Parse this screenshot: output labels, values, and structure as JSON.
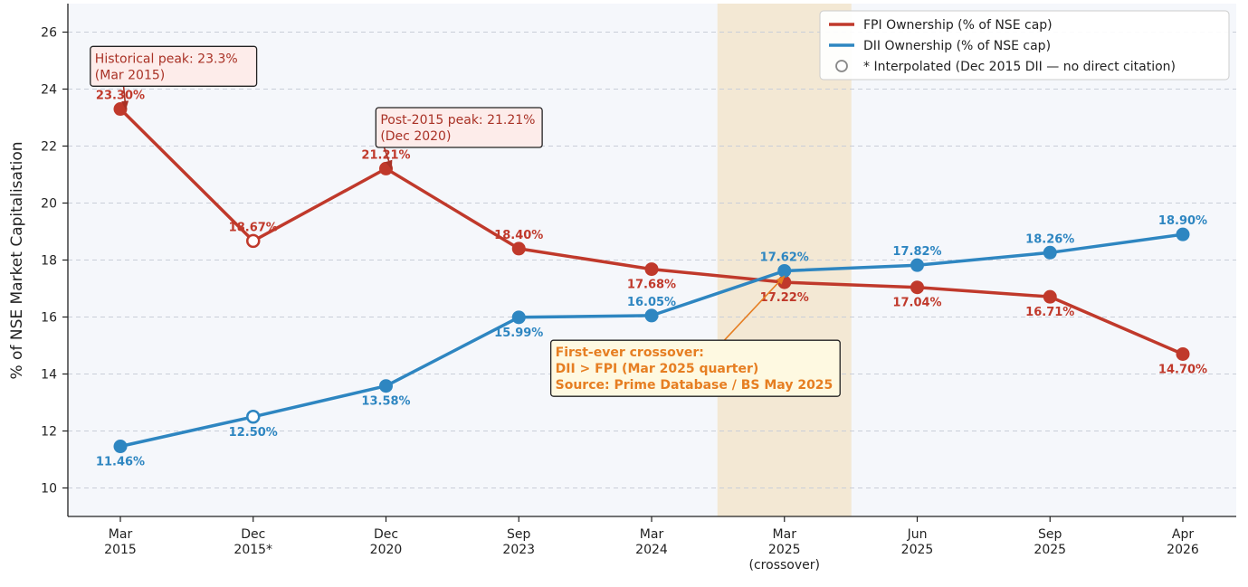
{
  "chart_data": {
    "type": "line",
    "title": "",
    "xlabel": "",
    "ylabel": "% of NSE Market Capitalisation",
    "ylim": [
      9,
      27
    ],
    "yticks": [
      10,
      12,
      14,
      16,
      18,
      20,
      22,
      24,
      26
    ],
    "grid": "horizontal dashed",
    "legend_position": "top-right",
    "categories": [
      [
        "Mar",
        "2015"
      ],
      [
        "Dec",
        "2015*"
      ],
      [
        "Dec",
        "2020"
      ],
      [
        "Sep",
        "2023"
      ],
      [
        "Mar",
        "2024"
      ],
      [
        "Mar",
        "2025",
        "(crossover)"
      ],
      [
        "Jun",
        "2025"
      ],
      [
        "Sep",
        "2025"
      ],
      [
        "Apr",
        "2026"
      ]
    ],
    "highlight_band": {
      "category_index": 5,
      "color": "#f2e3cb"
    },
    "series": [
      {
        "name": "FPI Ownership (% of NSE cap)",
        "color": "#c0392b",
        "values": [
          23.3,
          18.67,
          21.21,
          18.4,
          17.68,
          17.22,
          17.04,
          16.71,
          14.7
        ],
        "labels": [
          "23.30%",
          "18.67%",
          "21.21%",
          "18.40%",
          "17.68%",
          "17.22%",
          "17.04%",
          "16.71%",
          "14.70%"
        ],
        "label_side": [
          "above",
          "above",
          "above",
          "above",
          "below",
          "below",
          "below",
          "below",
          "below"
        ],
        "interpolated": [
          false,
          true,
          false,
          false,
          false,
          false,
          false,
          false,
          false
        ]
      },
      {
        "name": "DII Ownership (% of NSE cap)",
        "color": "#2e86c1",
        "values": [
          11.46,
          12.5,
          13.58,
          15.99,
          16.05,
          17.62,
          17.82,
          18.26,
          18.9
        ],
        "labels": [
          "11.46%",
          "12.50%",
          "13.58%",
          "15.99%",
          "16.05%",
          "17.62%",
          "17.82%",
          "18.26%",
          "18.90%"
        ],
        "label_side": [
          "below",
          "below",
          "below",
          "below",
          "above",
          "above",
          "above",
          "above",
          "above"
        ],
        "interpolated": [
          false,
          true,
          false,
          false,
          false,
          false,
          false,
          false,
          false
        ]
      }
    ],
    "legend": [
      {
        "label": "FPI Ownership (% of NSE cap)",
        "kind": "line",
        "color": "#c0392b"
      },
      {
        "label": "DII Ownership (% of NSE cap)",
        "kind": "line",
        "color": "#2e86c1"
      },
      {
        "label": "* Interpolated (Dec 2015 DII — no direct citation)",
        "kind": "hollow-marker",
        "color": "#888888"
      }
    ],
    "annotations": [
      {
        "lines": [
          "Historical peak: 23.3%",
          "(Mar 2015)"
        ],
        "color": "#a93226",
        "bg": "#fdecea",
        "bold": false,
        "points_to": {
          "category_index": 0,
          "value": 23.3
        },
        "anchor": {
          "category_index": 0.4,
          "value": 24.8
        }
      },
      {
        "lines": [
          "Post-2015 peak: 21.21%",
          "(Dec 2020)"
        ],
        "color": "#a93226",
        "bg": "#fdecea",
        "bold": false,
        "points_to": {
          "category_index": 2,
          "value": 21.21
        },
        "anchor": {
          "category_index": 2.55,
          "value": 22.65
        }
      },
      {
        "lines": [
          "First-ever crossover:",
          "DII > FPI (Mar 2025 quarter)",
          "Source: Prime Database / BS May 2025"
        ],
        "color": "#e67e22",
        "bg": "#fef9e1",
        "bold": true,
        "points_to": {
          "category_index": 5,
          "value": 17.5
        },
        "anchor": {
          "category_index": 4.33,
          "value": 14.2
        }
      }
    ]
  }
}
